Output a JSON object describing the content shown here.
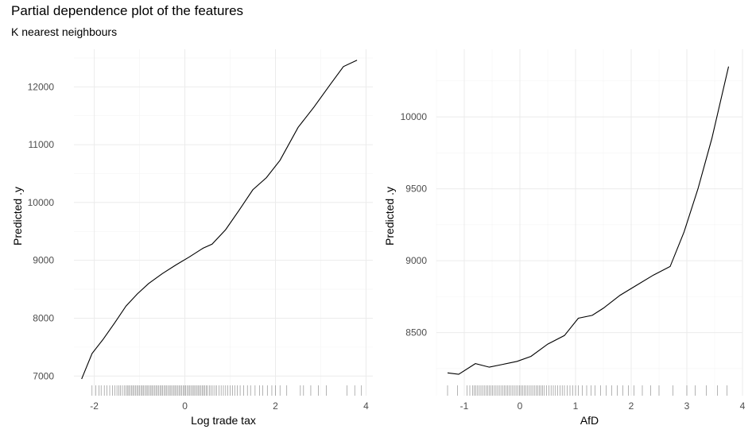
{
  "title": "Partial dependence plot of the features",
  "subtitle": "K nearest neighbours",
  "colors": {
    "line": "#000000",
    "grid_major": "#ebebeb",
    "grid_minor": "#f4f4f4",
    "rug": "#555555",
    "tick_text": "#4d4d4d"
  },
  "chart_data": [
    {
      "type": "line",
      "xlabel": "Log trade tax",
      "ylabel": "Predicted .y",
      "xlim": [
        -2.45,
        4.15
      ],
      "ylim": [
        6880,
        12650
      ],
      "xticks": [
        -2,
        0,
        2,
        4
      ],
      "yticks": [
        7000,
        8000,
        9000,
        10000,
        11000,
        12000
      ],
      "grid": true,
      "series": [
        {
          "x": [
            -2.28,
            -2.05,
            -1.8,
            -1.55,
            -1.3,
            -1.05,
            -0.8,
            -0.5,
            -0.2,
            0.1,
            0.4,
            0.6,
            0.9,
            1.2,
            1.5,
            1.8,
            2.1,
            2.5,
            2.85,
            3.2,
            3.5,
            3.8
          ],
          "y": [
            6950,
            7390,
            7640,
            7920,
            8210,
            8420,
            8600,
            8770,
            8920,
            9060,
            9210,
            9280,
            9530,
            9870,
            10220,
            10430,
            10730,
            11300,
            11650,
            12030,
            12350,
            12460
          ]
        }
      ],
      "rug": [
        -2.05,
        -1.97,
        -1.9,
        -1.85,
        -1.78,
        -1.72,
        -1.66,
        -1.6,
        -1.55,
        -1.5,
        -1.46,
        -1.42,
        -1.38,
        -1.34,
        -1.3,
        -1.27,
        -1.24,
        -1.21,
        -1.18,
        -1.15,
        -1.12,
        -1.09,
        -1.06,
        -1.03,
        -1.0,
        -0.97,
        -0.94,
        -0.91,
        -0.88,
        -0.85,
        -0.82,
        -0.79,
        -0.76,
        -0.73,
        -0.7,
        -0.67,
        -0.64,
        -0.61,
        -0.58,
        -0.55,
        -0.52,
        -0.49,
        -0.46,
        -0.43,
        -0.4,
        -0.37,
        -0.34,
        -0.31,
        -0.28,
        -0.25,
        -0.22,
        -0.19,
        -0.16,
        -0.13,
        -0.1,
        -0.07,
        -0.04,
        -0.01,
        0.02,
        0.05,
        0.08,
        0.11,
        0.14,
        0.17,
        0.2,
        0.23,
        0.26,
        0.29,
        0.32,
        0.35,
        0.38,
        0.41,
        0.44,
        0.47,
        0.5,
        0.54,
        0.58,
        0.62,
        0.66,
        0.7,
        0.75,
        0.8,
        0.85,
        0.9,
        0.95,
        1.0,
        1.05,
        1.1,
        1.16,
        1.22,
        1.3,
        1.38,
        1.45,
        1.55,
        1.65,
        1.72,
        1.82,
        1.92,
        2.0,
        2.1,
        2.25,
        2.55,
        2.62,
        2.78,
        2.95,
        3.12,
        3.58,
        3.75,
        3.9
      ]
    },
    {
      "type": "line",
      "xlabel": "AfD",
      "ylabel": "Predicted .y",
      "xlim": [
        -1.5,
        4.0
      ],
      "ylim": [
        8150,
        10470
      ],
      "xticks": [
        -1,
        0,
        1,
        2,
        3,
        4
      ],
      "yticks": [
        8500,
        9000,
        9500,
        10000
      ],
      "grid": true,
      "series": [
        {
          "x": [
            -1.3,
            -1.1,
            -0.8,
            -0.55,
            -0.3,
            -0.05,
            0.2,
            0.5,
            0.8,
            1.05,
            1.3,
            1.5,
            1.8,
            2.1,
            2.4,
            2.7,
            2.95,
            3.2,
            3.45,
            3.75
          ],
          "y": [
            8220,
            8210,
            8285,
            8260,
            8280,
            8300,
            8335,
            8420,
            8480,
            8600,
            8620,
            8670,
            8760,
            8830,
            8900,
            8960,
            9200,
            9500,
            9850,
            10350
          ]
        }
      ],
      "rug": [
        -1.3,
        -1.12,
        -0.95,
        -0.9,
        -0.85,
        -0.82,
        -0.79,
        -0.76,
        -0.73,
        -0.7,
        -0.67,
        -0.64,
        -0.61,
        -0.58,
        -0.55,
        -0.52,
        -0.49,
        -0.46,
        -0.43,
        -0.4,
        -0.37,
        -0.34,
        -0.31,
        -0.28,
        -0.25,
        -0.22,
        -0.19,
        -0.16,
        -0.13,
        -0.1,
        -0.07,
        -0.04,
        -0.01,
        0.02,
        0.05,
        0.08,
        0.11,
        0.14,
        0.17,
        0.2,
        0.23,
        0.26,
        0.29,
        0.32,
        0.35,
        0.38,
        0.41,
        0.44,
        0.48,
        0.52,
        0.56,
        0.6,
        0.64,
        0.68,
        0.72,
        0.76,
        0.8,
        0.85,
        0.9,
        0.95,
        1.0,
        1.05,
        1.12,
        1.2,
        1.28,
        1.35,
        1.45,
        1.55,
        1.65,
        1.75,
        1.85,
        1.95,
        2.05,
        2.2,
        2.35,
        2.5,
        2.75,
        3.0,
        3.15,
        3.35,
        3.55,
        3.72
      ]
    }
  ]
}
